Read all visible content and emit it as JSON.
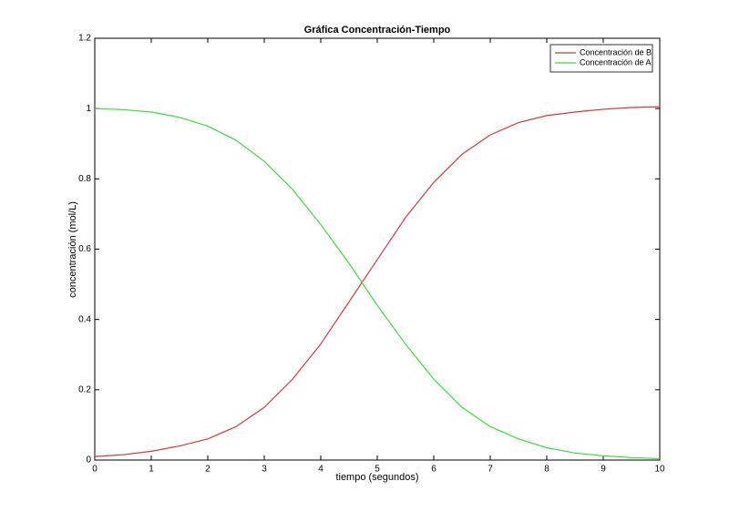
{
  "chart_data": {
    "type": "line",
    "title": "Gráfica Concentración-Tiempo",
    "xlabel": "tiempo (segundos)",
    "ylabel": "concentración (mol/L)",
    "x": [
      0,
      0.5,
      1,
      1.5,
      2,
      2.5,
      3,
      3.5,
      4,
      4.5,
      5,
      5.5,
      6,
      6.5,
      7,
      7.5,
      8,
      8.5,
      9,
      9.5,
      10
    ],
    "series": [
      {
        "name": "Concentración de B",
        "color": "#d23a3a",
        "values": [
          0.01,
          0.015,
          0.025,
          0.04,
          0.06,
          0.095,
          0.15,
          0.23,
          0.33,
          0.45,
          0.57,
          0.69,
          0.79,
          0.87,
          0.925,
          0.96,
          0.98,
          0.99,
          0.998,
          1.003,
          1.005
        ]
      },
      {
        "name": "Concentración de A",
        "color": "#3ddc3d",
        "values": [
          1.0,
          0.997,
          0.99,
          0.975,
          0.95,
          0.91,
          0.85,
          0.77,
          0.67,
          0.56,
          0.44,
          0.33,
          0.23,
          0.15,
          0.095,
          0.06,
          0.035,
          0.02,
          0.012,
          0.007,
          0.004
        ]
      }
    ],
    "xlim": [
      0,
      10
    ],
    "xticks": [
      0,
      1,
      2,
      3,
      4,
      5,
      6,
      7,
      8,
      9,
      10
    ],
    "ylim": [
      0,
      1.2
    ],
    "yticks": [
      0,
      0.2,
      0.4,
      0.6,
      0.8,
      1,
      1.2
    ],
    "legend": "top-right",
    "grid": false
  }
}
